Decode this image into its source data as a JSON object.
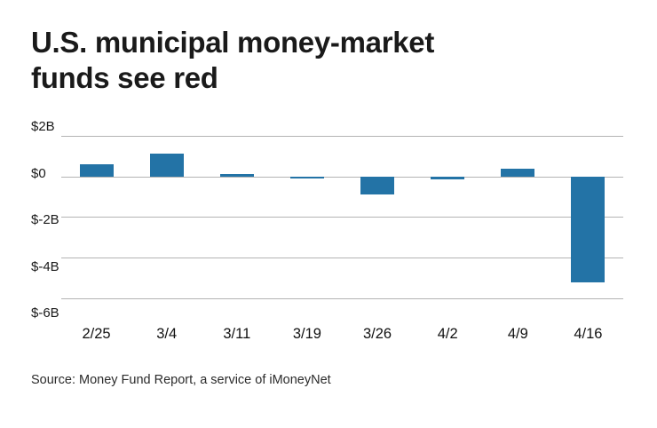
{
  "title": "U.S. municipal money-market\nfunds see red",
  "source": "Source: Money Fund Report, a service of iMoneyNet",
  "colors": {
    "bar": "#2373a6",
    "gridline": "#b3b3b3",
    "text": "#1a1a1a"
  },
  "chart_data": {
    "type": "bar",
    "title": "U.S. municipal money-market funds see red",
    "categories": [
      "2/25",
      "3/4",
      "3/11",
      "3/19",
      "3/26",
      "4/2",
      "4/9",
      "4/16"
    ],
    "values": [
      0.6,
      1.1,
      0.1,
      -0.1,
      -0.9,
      -0.15,
      0.4,
      -5.2
    ],
    "unit": "billions of dollars (weekly flows)",
    "xlabel": "",
    "ylabel": "",
    "ylim": [
      -6.8,
      2.6
    ],
    "yticks": [
      {
        "value": 2,
        "label": "$2B"
      },
      {
        "value": 0,
        "label": "$0"
      },
      {
        "value": -2,
        "label": "$-2B"
      },
      {
        "value": -4,
        "label": "$-4B"
      },
      {
        "value": -6,
        "label": "$-6B"
      }
    ],
    "grid": true,
    "legend": "none",
    "bar_color": "#2373a6",
    "gridline_color": "#b3b3b3"
  }
}
